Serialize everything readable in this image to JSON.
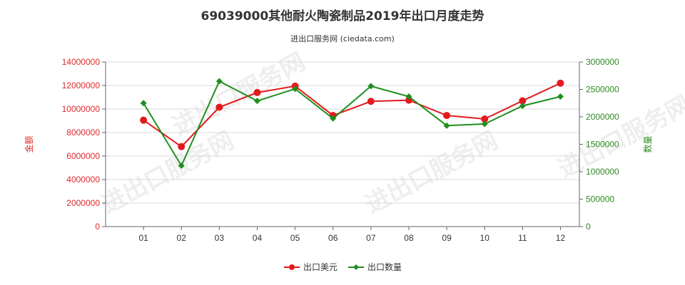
{
  "chart": {
    "title": "69039000其他耐火陶瓷制品2019年出口月度走势",
    "subtitle": "进出口服务网 (ciedata.com)",
    "watermark": "进出口服务网"
  },
  "colors": {
    "left_axis": "#e0292b",
    "right_axis": "#2d8a20",
    "series_amount": "#e31a1c",
    "series_quantity": "#1f8f1f",
    "grid": "#d9d9d9",
    "axis": "#666666"
  },
  "chart_data": {
    "type": "line",
    "title": "69039000其他耐火陶瓷制品2019年出口月度走势",
    "subtitle": "进出口服务网 (ciedata.com)",
    "categories": [
      "01",
      "02",
      "03",
      "04",
      "05",
      "06",
      "07",
      "08",
      "09",
      "10",
      "11",
      "12"
    ],
    "y_left": {
      "label": "金额",
      "min": 0,
      "max": 14000000,
      "ticks": [
        "0",
        "2000000",
        "4000000",
        "6000000",
        "8000000",
        "10000000",
        "12000000",
        "14000000"
      ]
    },
    "y_right": {
      "label": "数量",
      "min": 0,
      "max": 3000000,
      "ticks": [
        "0",
        "500000",
        "1000000",
        "1500000",
        "2000000",
        "2500000",
        "3000000"
      ]
    },
    "series": [
      {
        "name": "出口美元",
        "axis": "left",
        "values": [
          9050000,
          6800000,
          10150000,
          11400000,
          11950000,
          9450000,
          10650000,
          10750000,
          9450000,
          9150000,
          10700000,
          12200000
        ]
      },
      {
        "name": "出口数量",
        "axis": "right",
        "values": [
          2250000,
          1110000,
          2650000,
          2290000,
          2510000,
          1970000,
          2560000,
          2370000,
          1840000,
          1870000,
          2200000,
          2370000
        ]
      }
    ],
    "grid": true,
    "legend": "bottom-center"
  }
}
